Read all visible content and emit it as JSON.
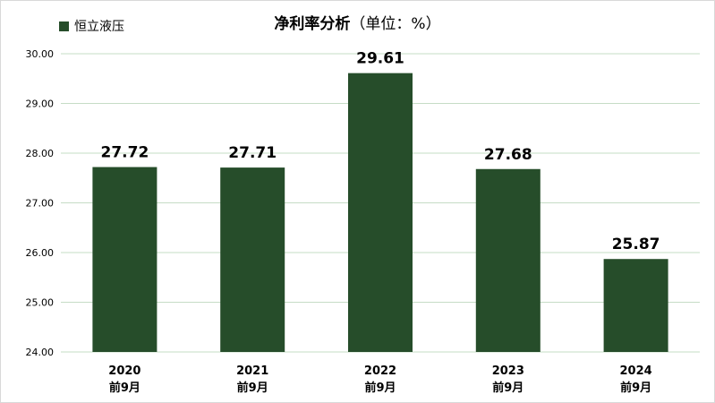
{
  "chart_data": {
    "type": "bar",
    "title": "净利率分析",
    "title_unit": "（单位：%）",
    "legend": {
      "position": "top-left",
      "entries": [
        "恒立液压"
      ]
    },
    "categories": [
      {
        "year": "2020",
        "period": "前9月"
      },
      {
        "year": "2021",
        "period": "前9月"
      },
      {
        "year": "2022",
        "period": "前9月"
      },
      {
        "year": "2023",
        "period": "前9月"
      },
      {
        "year": "2024",
        "period": "前9月"
      }
    ],
    "series": [
      {
        "name": "恒立液压",
        "color": "#264d2a",
        "values": [
          27.72,
          27.71,
          29.61,
          27.68,
          25.87
        ]
      }
    ],
    "data_labels": [
      "27.72",
      "27.71",
      "29.61",
      "27.68",
      "25.87"
    ],
    "ylim": [
      24.0,
      30.0
    ],
    "yticks": [
      "24.00",
      "25.00",
      "26.00",
      "27.00",
      "28.00",
      "29.00",
      "30.00"
    ],
    "grid": true
  }
}
